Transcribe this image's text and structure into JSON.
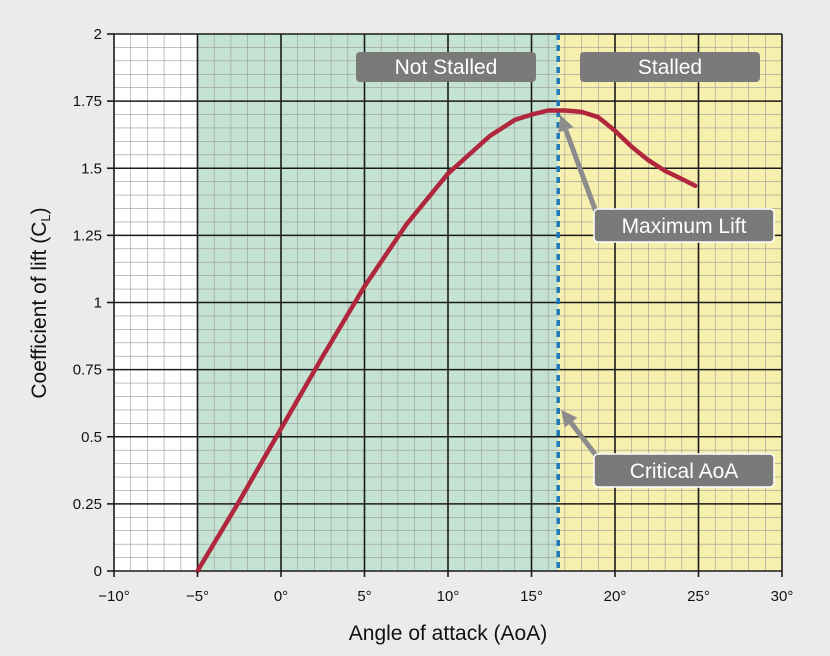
{
  "chart_data": {
    "type": "line",
    "xlabel": "Angle of attack (AoA)",
    "ylabel_main": "Coefficient of lift (C",
    "ylabel_sub": "L",
    "ylabel_close": ")",
    "xlim": [
      -10,
      30
    ],
    "ylim": [
      0,
      2
    ],
    "x_ticks": [
      -10,
      -5,
      0,
      5,
      10,
      15,
      20,
      25,
      30
    ],
    "x_tick_labels": [
      "−10°",
      "−5°",
      "0°",
      "5°",
      "10°",
      "15°",
      "20°",
      "25°",
      "30°"
    ],
    "y_ticks": [
      0,
      0.25,
      0.5,
      0.75,
      1,
      1.25,
      1.5,
      1.75,
      2
    ],
    "y_tick_labels": [
      "0",
      "0.25",
      "0.5",
      "0.75",
      "1",
      "1.25",
      "1.5",
      "1.75",
      "2"
    ],
    "grid": true,
    "minor_grid_step_x": 1,
    "minor_grid_step_y": 0.05,
    "series": [
      {
        "color": "#b0263c",
        "points": [
          [
            -5,
            0
          ],
          [
            -2.5,
            0.26
          ],
          [
            0,
            0.53
          ],
          [
            2.5,
            0.8
          ],
          [
            5,
            1.06
          ],
          [
            7.5,
            1.29
          ],
          [
            10,
            1.48
          ],
          [
            12.5,
            1.62
          ],
          [
            14,
            1.68
          ],
          [
            15,
            1.7
          ],
          [
            16,
            1.715
          ],
          [
            17,
            1.715
          ],
          [
            18,
            1.71
          ],
          [
            19,
            1.69
          ],
          [
            20,
            1.64
          ],
          [
            21,
            1.58
          ],
          [
            22,
            1.53
          ],
          [
            23,
            1.49
          ],
          [
            24,
            1.46
          ],
          [
            24.8,
            1.435
          ]
        ]
      }
    ],
    "regions": [
      {
        "name": "not-stalled",
        "x_from": -5,
        "x_to": 16.6,
        "color": "#c5e3d2"
      },
      {
        "name": "stalled",
        "x_from": 16.6,
        "x_to": 30,
        "color": "#f6efae"
      }
    ],
    "critical_line": {
      "x": 16.6,
      "color": "#1f78b7"
    },
    "annotations": {
      "not_stalled": "Not Stalled",
      "stalled": "Stalled",
      "maximum_lift": "Maximum Lift",
      "critical_aoa": "Critical AoA"
    },
    "annotation_targets": {
      "maximum_lift": [
        16.6,
        1.71
      ],
      "critical_aoa": [
        16.6,
        0.6
      ]
    },
    "callout_color": "#7a7a7a",
    "arrow_color": "#8c8c8c"
  }
}
